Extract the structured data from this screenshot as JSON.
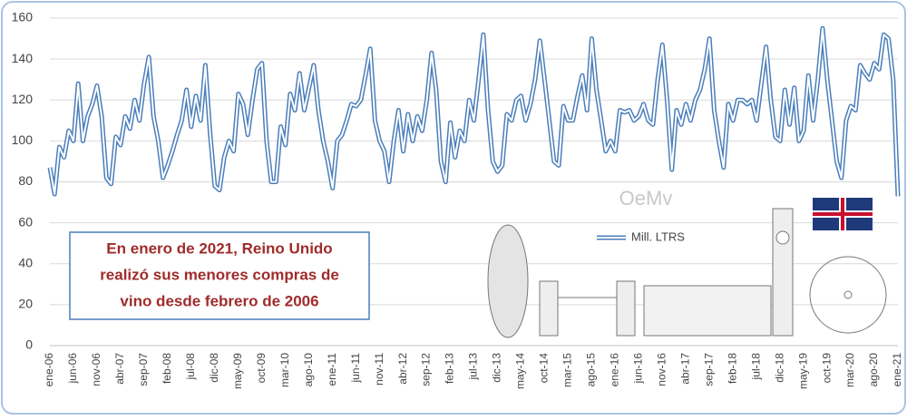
{
  "chart_data": {
    "type": "line",
    "categories": [
      "ene-06",
      null,
      null,
      null,
      null,
      "jun-06",
      null,
      null,
      null,
      null,
      "nov-06",
      null,
      null,
      null,
      null,
      "abr-07",
      null,
      null,
      null,
      null,
      "sep-07",
      null,
      null,
      null,
      null,
      "feb-08",
      null,
      null,
      null,
      null,
      "jul-08",
      null,
      null,
      null,
      null,
      "dic-08",
      null,
      null,
      null,
      null,
      "may-09",
      null,
      null,
      null,
      null,
      "oct-09",
      null,
      null,
      null,
      null,
      "mar-10",
      null,
      null,
      null,
      null,
      "ago-10",
      null,
      null,
      null,
      null,
      "ene-11",
      null,
      null,
      null,
      null,
      "jun-11",
      null,
      null,
      null,
      null,
      "nov-11",
      null,
      null,
      null,
      null,
      "abr-12",
      null,
      null,
      null,
      null,
      "sep-12",
      null,
      null,
      null,
      null,
      "feb-13",
      null,
      null,
      null,
      null,
      "jul-13",
      null,
      null,
      null,
      null,
      "dic-13",
      null,
      null,
      null,
      null,
      "may-14",
      null,
      null,
      null,
      null,
      "oct-14",
      null,
      null,
      null,
      null,
      "mar-15",
      null,
      null,
      null,
      null,
      "ago-15",
      null,
      null,
      null,
      null,
      "ene-16",
      null,
      null,
      null,
      null,
      "jun-16",
      null,
      null,
      null,
      null,
      "nov-16",
      null,
      null,
      null,
      null,
      "abr-17",
      null,
      null,
      null,
      null,
      "sep-17",
      null,
      null,
      null,
      null,
      "feb-18",
      null,
      null,
      null,
      null,
      "jul-18",
      null,
      null,
      null,
      null,
      "dic-18",
      null,
      null,
      null,
      null,
      "may-19",
      null,
      null,
      null,
      null,
      "oct-19",
      null,
      null,
      null,
      null,
      "mar-20",
      null,
      null,
      null,
      null,
      "ago-20",
      null,
      null,
      null,
      null,
      "ene-21"
    ],
    "series": [
      {
        "name": "Mill. LTRS",
        "color": "#4a7ebb",
        "values": [
          87,
          74,
          97,
          92,
          105,
          100,
          128,
          100,
          112,
          118,
          127,
          112,
          82,
          79,
          102,
          98,
          112,
          106,
          120,
          110,
          128,
          141,
          112,
          100,
          82,
          88,
          95,
          103,
          110,
          125,
          107,
          122,
          110,
          137,
          104,
          78,
          76,
          92,
          100,
          95,
          123,
          118,
          103,
          120,
          135,
          138,
          100,
          80,
          80,
          107,
          98,
          123,
          115,
          133,
          115,
          126,
          137,
          115,
          100,
          90,
          77,
          100,
          103,
          110,
          118,
          117,
          120,
          132,
          145,
          110,
          100,
          95,
          80,
          100,
          115,
          95,
          113,
          100,
          112,
          105,
          120,
          143,
          125,
          90,
          80,
          109,
          92,
          105,
          100,
          120,
          110,
          130,
          152,
          115,
          90,
          85,
          88,
          113,
          110,
          120,
          122,
          110,
          118,
          130,
          149,
          130,
          110,
          90,
          88,
          117,
          110,
          110,
          122,
          132,
          115,
          150,
          125,
          110,
          95,
          100,
          95,
          115,
          114,
          115,
          110,
          112,
          118,
          110,
          108,
          130,
          147,
          120,
          86,
          115,
          108,
          118,
          110,
          120,
          125,
          135,
          150,
          115,
          100,
          87,
          118,
          110,
          120,
          120,
          118,
          120,
          110,
          128,
          146,
          120,
          102,
          100,
          125,
          108,
          126,
          100,
          105,
          132,
          110,
          130,
          155,
          130,
          110,
          90,
          82,
          110,
          117,
          115,
          137,
          133,
          130,
          138,
          135,
          152,
          150,
          130,
          73
        ]
      }
    ],
    "ylim": [
      0,
      160
    ],
    "yticks": [
      0,
      20,
      40,
      60,
      80,
      100,
      120,
      140,
      160
    ],
    "grid": true,
    "annotation": [
      "En enero de 2021, Reino Unido",
      "realizó sus menores compras de",
      "vino desde febrero de 2006"
    ],
    "watermark": "OeMv"
  }
}
